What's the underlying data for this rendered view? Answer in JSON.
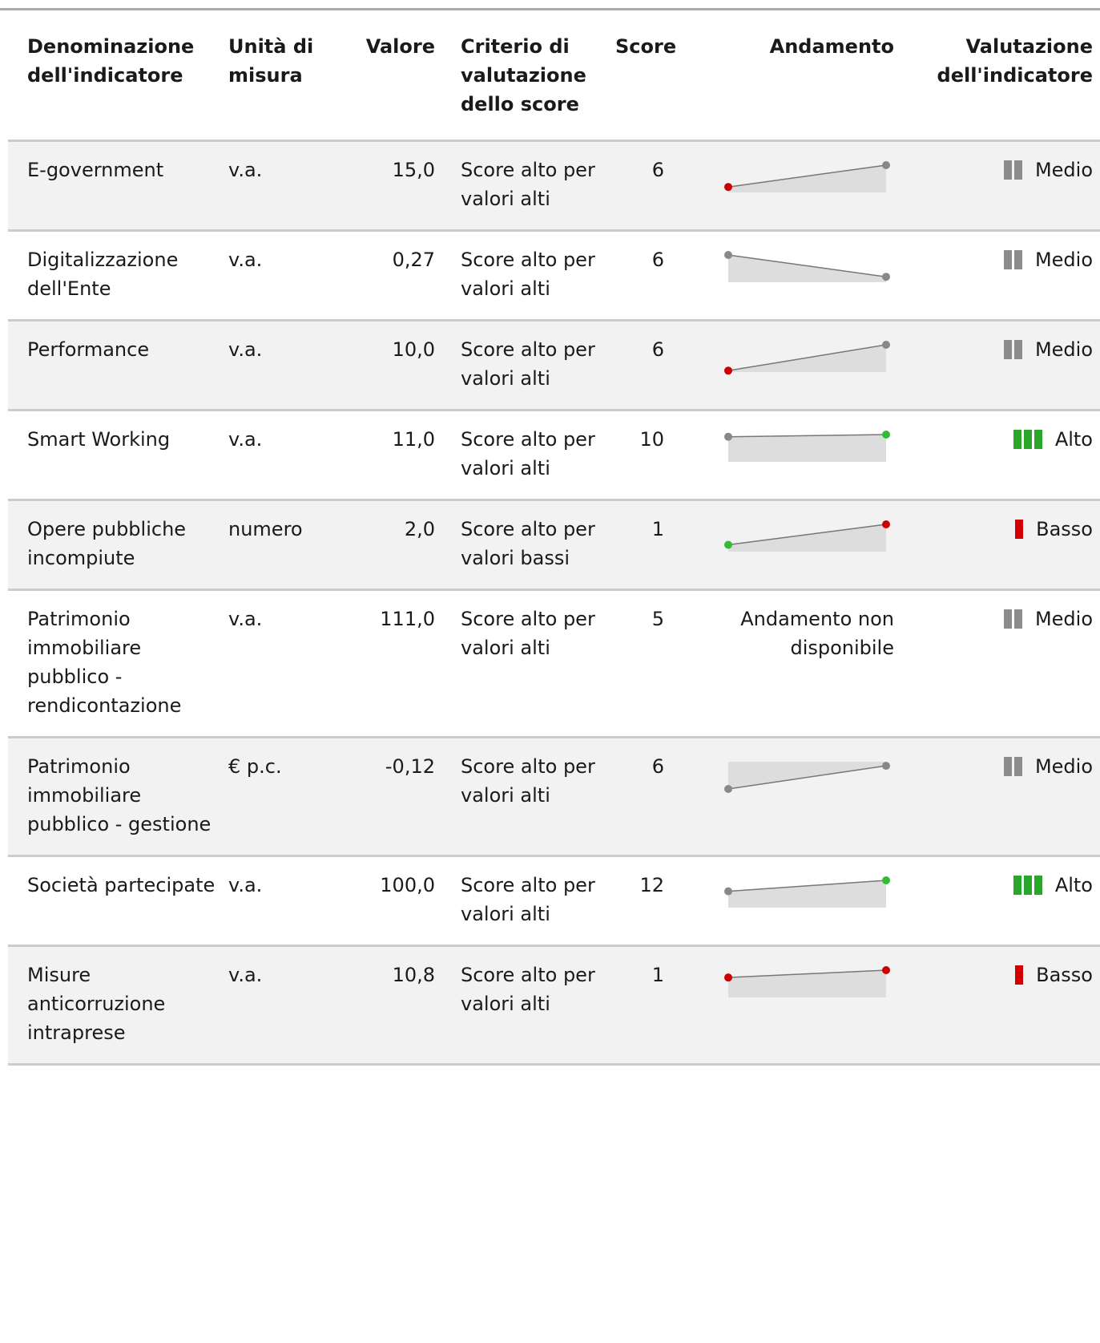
{
  "headers": {
    "name": "Denominazione dell'indicatore",
    "unit": "Unità di misura",
    "value": "Valore",
    "criterion": "Criterio di valutazione dello score",
    "score": "Score",
    "trend": "Andamento",
    "evaluation": "Valutazione dell'indicatore"
  },
  "colors": {
    "grey_bar": "#8c8c8c",
    "green_bar": "#2aa62a",
    "red_bar": "#d40000",
    "dot_grey": "#888888",
    "dot_green": "#33bb33",
    "dot_red": "#cc0000",
    "spark_fill": "#dddddd"
  },
  "rows": [
    {
      "name": "E-government",
      "unit": "v.a.",
      "value": "15,0",
      "criterion": "Score alto per valori alti",
      "score": "6",
      "trend": {
        "available": true,
        "start": 0.2,
        "end": 1.0,
        "start_color": "red",
        "end_color": "grey"
      },
      "evaluation": "Medio",
      "level": 2
    },
    {
      "name": "Digitalizzazione dell'Ente",
      "unit": "v.a.",
      "value": "0,27",
      "criterion": "Score alto per valori alti",
      "score": "6",
      "trend": {
        "available": true,
        "start": 1.0,
        "end": 0.2,
        "start_color": "grey",
        "end_color": "grey"
      },
      "evaluation": "Medio",
      "level": 2
    },
    {
      "name": "Performance",
      "unit": "v.a.",
      "value": "10,0",
      "criterion": "Score alto per valori alti",
      "score": "6",
      "trend": {
        "available": true,
        "start": 0.05,
        "end": 1.0,
        "start_color": "red",
        "end_color": "grey"
      },
      "evaluation": "Medio",
      "level": 2
    },
    {
      "name": "Smart Working",
      "unit": "v.a.",
      "value": "11,0",
      "criterion": "Score alto per valori alti",
      "score": "10",
      "trend": {
        "available": true,
        "start": 0.92,
        "end": 1.0,
        "start_color": "grey",
        "end_color": "green"
      },
      "evaluation": "Alto",
      "level": 3
    },
    {
      "name": "Opere pubbliche incompiute",
      "unit": "numero",
      "value": "2,0",
      "criterion": "Score alto per valori bassi",
      "score": "1",
      "trend": {
        "available": true,
        "start": 0.25,
        "end": 1.0,
        "start_color": "green",
        "end_color": "red"
      },
      "evaluation": "Basso",
      "level": 1
    },
    {
      "name": "Patrimonio immobiliare pubblico - rendicontazione",
      "unit": "v.a.",
      "value": "111,0",
      "criterion": "Score alto per valori alti",
      "score": "5",
      "trend": {
        "available": false,
        "text": "Andamento non disponibile"
      },
      "evaluation": "Medio",
      "level": 2
    },
    {
      "name": "Patrimonio immobiliare pubblico - gestione",
      "unit": "€ p.c.",
      "value": "-0,12",
      "criterion": "Score alto per valori alti",
      "score": "6",
      "trend": {
        "available": true,
        "start": -1.0,
        "end": -0.15,
        "start_color": "grey",
        "end_color": "grey"
      },
      "evaluation": "Medio",
      "level": 2
    },
    {
      "name": "Società partecipate",
      "unit": "v.a.",
      "value": "100,0",
      "criterion": "Score alto per valori alti",
      "score": "12",
      "trend": {
        "available": true,
        "start": 0.6,
        "end": 1.0,
        "start_color": "grey",
        "end_color": "green"
      },
      "evaluation": "Alto",
      "level": 3
    },
    {
      "name": "Misure anticorruzione intraprese",
      "unit": "v.a.",
      "value": "10,8",
      "criterion": "Score alto per valori alti",
      "score": "1",
      "trend": {
        "available": true,
        "start": 0.73,
        "end": 1.0,
        "start_color": "red",
        "end_color": "red"
      },
      "evaluation": "Basso",
      "level": 1
    }
  ]
}
